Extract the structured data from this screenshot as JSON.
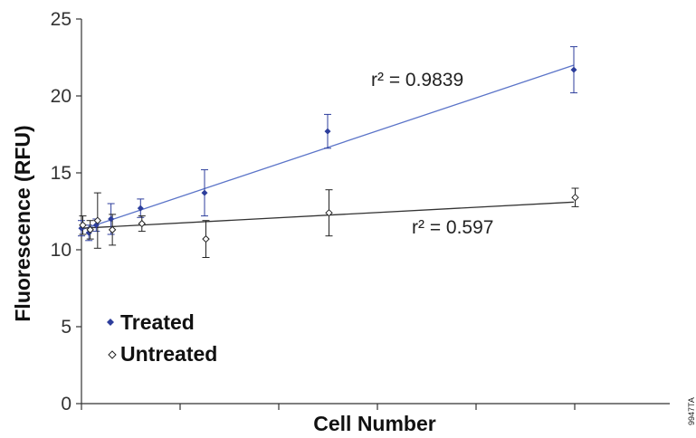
{
  "chart_data": {
    "type": "scatter",
    "xlabel": "Cell Number",
    "ylabel": "Fluorescence (RFU)",
    "ylim": [
      0,
      25
    ],
    "xlim": [
      0,
      10
    ],
    "y_ticks": [
      0,
      5,
      10,
      15,
      20,
      25
    ],
    "x_tick_count": 10,
    "x_tick_labels_shown": false,
    "grid": false,
    "legend_placement": "bottom-left",
    "series": [
      {
        "name": "Treated",
        "color": "#2d3e9c",
        "line_color": "#5b74c8",
        "marker": "filled-diamond",
        "x": [
          0.0,
          0.15,
          0.3,
          0.6,
          1.2,
          2.5,
          5.0,
          10.0
        ],
        "y": [
          11.4,
          11.1,
          11.6,
          12.0,
          12.7,
          13.7,
          17.7,
          21.7
        ],
        "err": [
          0.5,
          0.5,
          0.4,
          1.0,
          0.6,
          1.5,
          1.1,
          1.5
        ],
        "trendline": {
          "start": 11.3,
          "end": 22.0,
          "r2_label": "r² = 0.9839"
        }
      },
      {
        "name": "Untreated",
        "color": "#222222",
        "line_color": "#333333",
        "marker": "open-diamond",
        "x": [
          0.0,
          0.15,
          0.3,
          0.6,
          1.2,
          2.5,
          5.0,
          10.0
        ],
        "y": [
          11.6,
          11.3,
          11.9,
          11.3,
          11.7,
          10.7,
          12.4,
          13.4
        ],
        "err": [
          0.6,
          0.6,
          1.8,
          1.0,
          0.5,
          1.2,
          1.5,
          0.6
        ],
        "trendline": {
          "start": 11.4,
          "end": 13.1,
          "r2_label": "r² = 0.597"
        }
      }
    ],
    "annotations": [
      "r² = 0.9839",
      "r² = 0.597"
    ],
    "figure_id": "9947TA"
  }
}
